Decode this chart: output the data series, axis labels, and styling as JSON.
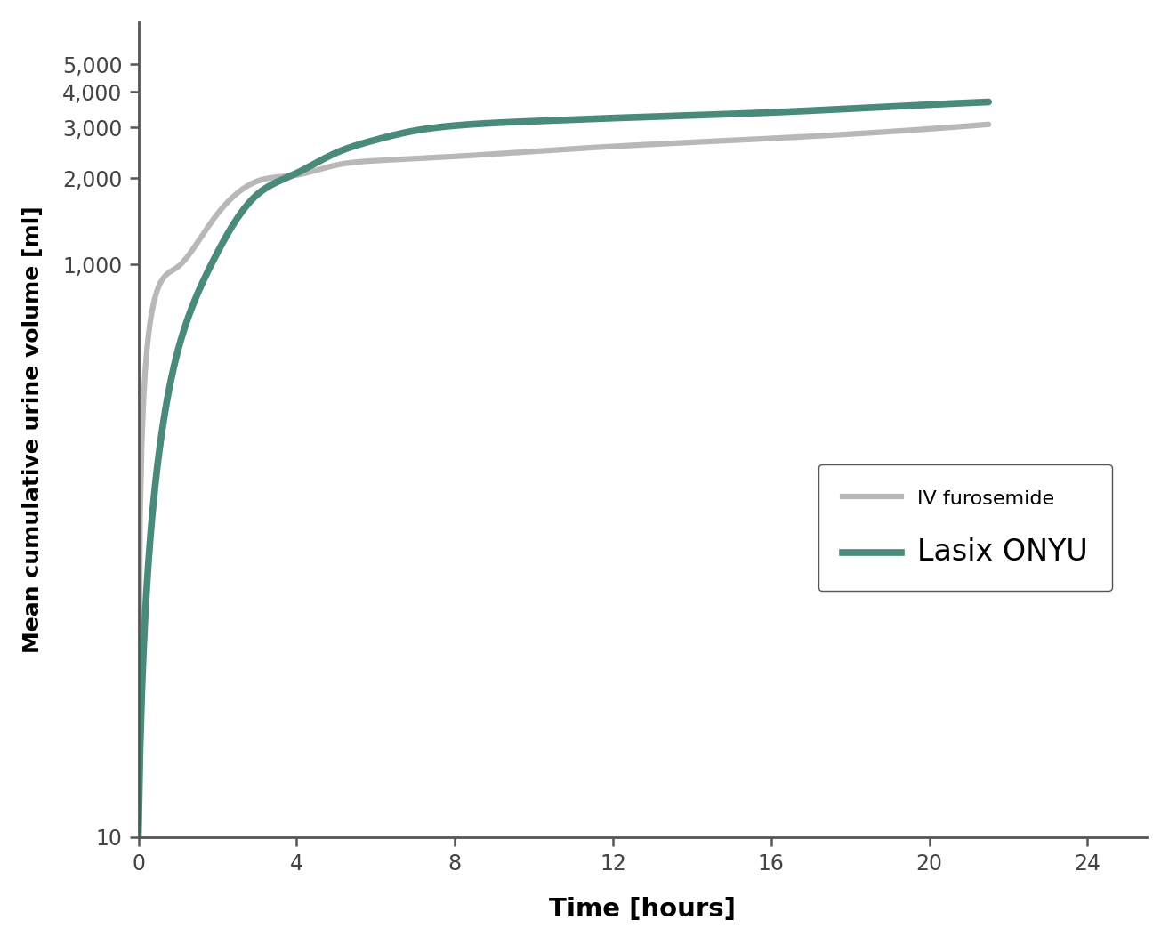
{
  "iv_furosemide_x": [
    0,
    0.3,
    1,
    2,
    3,
    4,
    5,
    6,
    7,
    8,
    10,
    12,
    16,
    20,
    21.5
  ],
  "iv_furosemide_y": [
    10,
    630,
    980,
    1500,
    1950,
    2050,
    2220,
    2300,
    2340,
    2380,
    2480,
    2580,
    2750,
    2970,
    3080
  ],
  "lasix_x": [
    0,
    0.3,
    1,
    2,
    3,
    4,
    5,
    6,
    7,
    8,
    10,
    12,
    16,
    20,
    21.5
  ],
  "lasix_y": [
    10,
    110,
    500,
    1100,
    1750,
    2080,
    2450,
    2720,
    2930,
    3050,
    3160,
    3240,
    3390,
    3610,
    3690
  ],
  "iv_color": "#b8b8b8",
  "lasix_color": "#4a8a7a",
  "iv_linewidth": 4.5,
  "lasix_linewidth": 5.5,
  "xlabel": "Time [hours]",
  "ylabel": "Mean cumulative urine volume [ml]",
  "xlabel_fontsize": 21,
  "ylabel_fontsize": 18,
  "xticks": [
    0,
    4,
    8,
    12,
    16,
    20,
    24
  ],
  "yticks": [
    10,
    1000,
    2000,
    3000,
    4000,
    5000
  ],
  "ytick_labels": [
    "10",
    "1,000",
    "2,000",
    "3,000",
    "4,000",
    "5,000"
  ],
  "xlim": [
    0,
    25.5
  ],
  "ylim_log": [
    10,
    7000
  ],
  "legend_iv": "IV furosemide",
  "legend_lasix": "Lasix ONYU",
  "legend_fontsize_iv": 16,
  "legend_fontsize_lasix": 24,
  "background_color": "#ffffff",
  "spine_color": "#555555",
  "tick_color": "#444444",
  "label_color": "#000000"
}
